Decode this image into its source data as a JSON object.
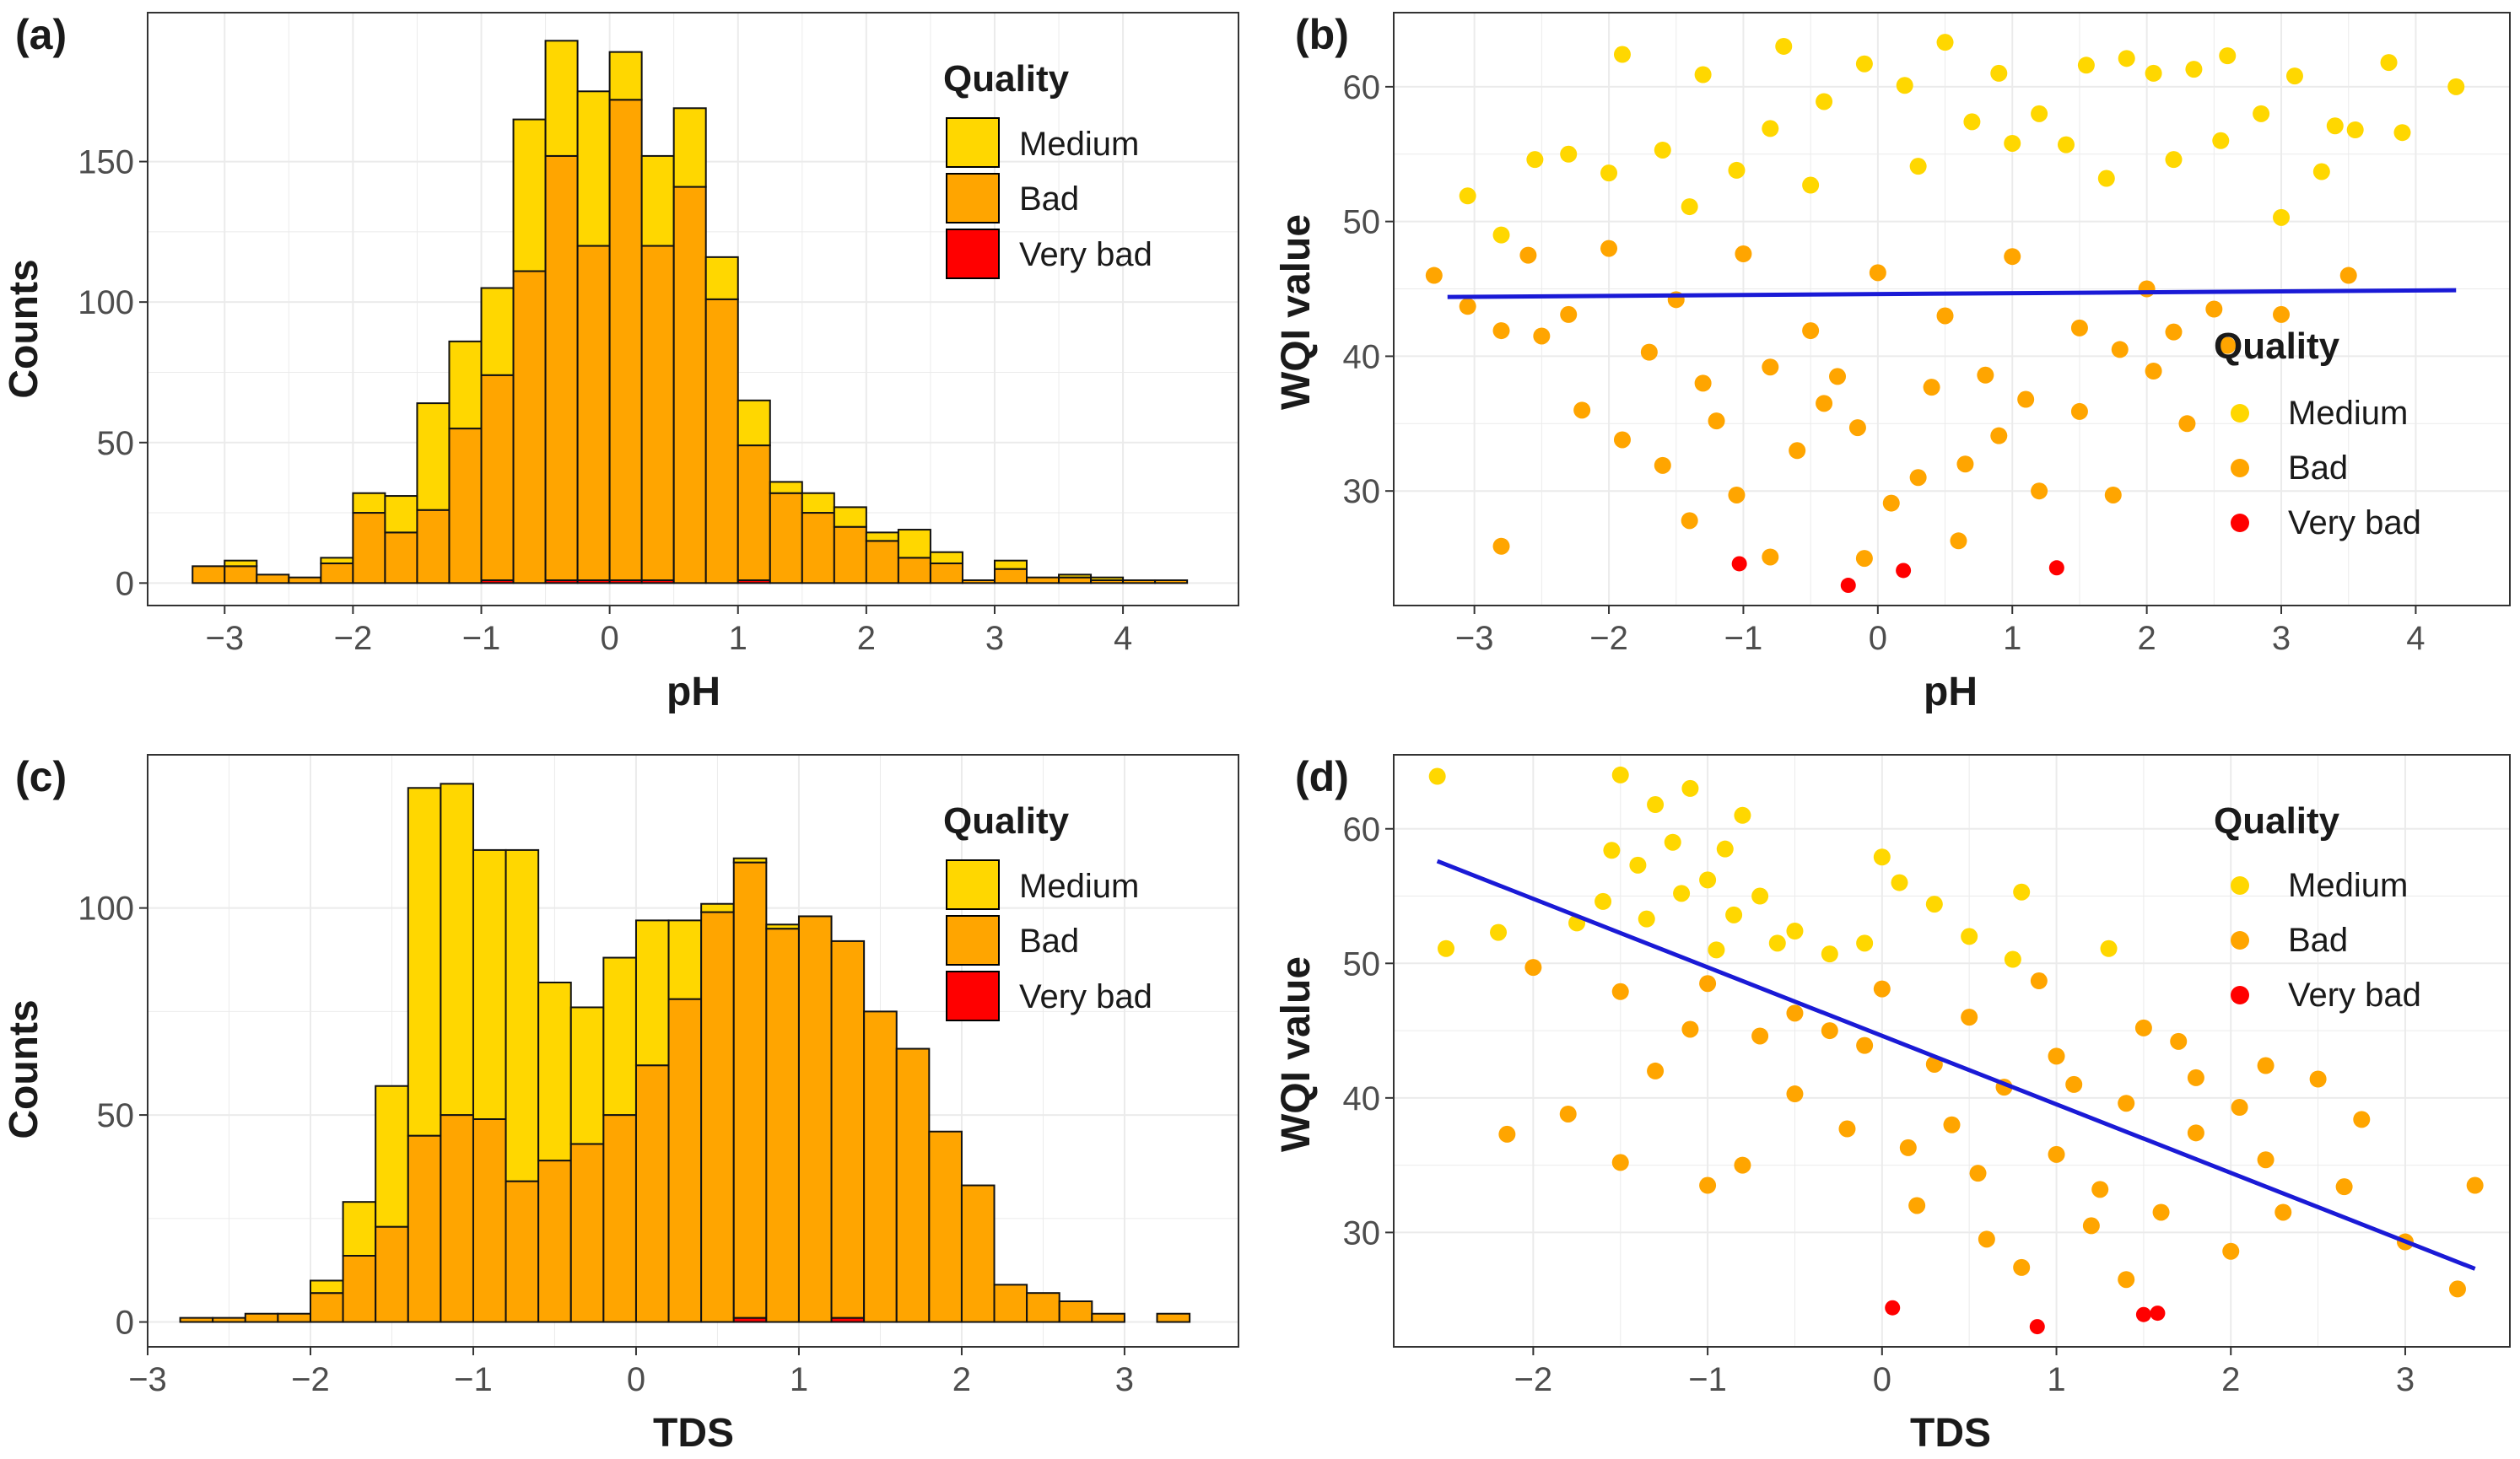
{
  "colors": {
    "medium": "#FFD700",
    "bad": "#FFA500",
    "very_bad": "#FF0000",
    "trend": "#1a1ad6",
    "grid": "#ebebeb",
    "frame": "#333333"
  },
  "chart_data": [
    {
      "id": "a",
      "panel_label": "(a)",
      "type": "bar",
      "subtype": "stacked-histogram",
      "xlabel": "pH",
      "ylabel": "Counts",
      "xlim": [
        -3.6,
        4.9
      ],
      "ylim": [
        -8,
        203
      ],
      "xticks": [
        -3,
        -2,
        -1,
        0,
        1,
        2,
        3,
        4
      ],
      "yticks": [
        0,
        50,
        100,
        150
      ],
      "bin_width": 0.25,
      "bin_starts": [
        -3.25,
        -3.0,
        -2.75,
        -2.5,
        -2.25,
        -2.0,
        -1.75,
        -1.5,
        -1.25,
        -1.0,
        -0.75,
        -0.5,
        -0.25,
        0.0,
        0.25,
        0.5,
        0.75,
        1.0,
        1.25,
        1.5,
        1.75,
        2.0,
        2.25,
        2.5,
        2.75,
        3.0,
        3.25,
        3.5,
        3.75,
        4.0,
        4.25
      ],
      "series": [
        {
          "name": "Very bad",
          "color_key": "very_bad",
          "values": [
            0,
            0,
            0,
            0,
            0,
            0,
            0,
            0,
            0,
            1,
            0,
            1,
            1,
            1,
            1,
            0,
            0,
            1,
            0,
            0,
            0,
            0,
            0,
            0,
            0,
            0,
            0,
            0,
            0,
            0,
            0
          ]
        },
        {
          "name": "Bad",
          "color_key": "bad",
          "values": [
            6,
            6,
            3,
            2,
            7,
            25,
            18,
            26,
            55,
            73,
            111,
            151,
            119,
            171,
            119,
            141,
            101,
            48,
            32,
            25,
            20,
            15,
            9,
            7,
            1,
            5,
            2,
            2,
            1,
            1,
            1
          ]
        },
        {
          "name": "Medium",
          "color_key": "medium",
          "values": [
            0,
            2,
            0,
            0,
            2,
            7,
            13,
            38,
            31,
            31,
            54,
            41,
            55,
            17,
            32,
            28,
            15,
            16,
            4,
            7,
            7,
            3,
            10,
            4,
            0,
            3,
            0,
            1,
            1,
            0,
            0
          ]
        }
      ],
      "legend": {
        "title": "Quality",
        "entries": [
          "Medium",
          "Bad",
          "Very bad"
        ],
        "position": "top-right"
      }
    },
    {
      "id": "b",
      "panel_label": "(b)",
      "type": "scatter",
      "xlabel": "pH",
      "ylabel": "WQI value",
      "xlim": [
        -3.6,
        4.7
      ],
      "ylim": [
        21.5,
        65.5
      ],
      "xticks": [
        -3,
        -2,
        -1,
        0,
        1,
        2,
        3,
        4
      ],
      "yticks": [
        30,
        40,
        50,
        60
      ],
      "trend": {
        "x": [
          -3.2,
          4.3
        ],
        "y": [
          44.4,
          44.9
        ]
      },
      "points": {
        "Very bad": [
          [
            -1.03,
            24.6
          ],
          [
            -0.22,
            23.0
          ],
          [
            0.19,
            24.1
          ],
          [
            1.33,
            24.3
          ]
        ],
        "Medium": [
          [
            -3.05,
            51.9
          ],
          [
            -2.8,
            49.0
          ],
          [
            -2.55,
            54.6
          ],
          [
            -1.9,
            62.4
          ],
          [
            -2.0,
            53.6
          ],
          [
            -1.6,
            55.3
          ],
          [
            -1.3,
            60.9
          ],
          [
            -1.05,
            53.8
          ],
          [
            -0.7,
            63.0
          ],
          [
            -0.4,
            58.9
          ],
          [
            -0.1,
            61.7
          ],
          [
            0.2,
            60.1
          ],
          [
            0.5,
            63.3
          ],
          [
            0.9,
            61.0
          ],
          [
            1.2,
            58.0
          ],
          [
            1.55,
            61.6
          ],
          [
            1.85,
            62.1
          ],
          [
            2.05,
            61.0
          ],
          [
            2.2,
            54.6
          ],
          [
            2.6,
            62.3
          ],
          [
            2.85,
            58.0
          ],
          [
            3.1,
            60.8
          ],
          [
            3.3,
            53.7
          ],
          [
            3.4,
            57.1
          ],
          [
            3.55,
            56.8
          ],
          [
            3.8,
            61.8
          ],
          [
            4.3,
            60.0
          ],
          [
            3.0,
            50.3
          ],
          [
            1.0,
            55.8
          ],
          [
            -0.5,
            52.7
          ],
          [
            0.3,
            54.1
          ],
          [
            -1.4,
            51.1
          ],
          [
            1.7,
            53.2
          ],
          [
            2.55,
            56.0
          ],
          [
            3.9,
            56.6
          ],
          [
            0.7,
            57.4
          ],
          [
            -0.8,
            56.9
          ],
          [
            2.35,
            61.3
          ],
          [
            -2.3,
            55.0
          ],
          [
            1.4,
            55.7
          ]
        ],
        "Bad": [
          [
            -3.3,
            46.0
          ],
          [
            -3.05,
            43.7
          ],
          [
            -2.8,
            41.9
          ],
          [
            -2.8,
            25.9
          ],
          [
            -2.6,
            47.5
          ],
          [
            -2.3,
            43.1
          ],
          [
            -2.2,
            36.0
          ],
          [
            -1.9,
            33.8
          ],
          [
            -1.6,
            31.9
          ],
          [
            -1.4,
            27.8
          ],
          [
            -1.2,
            35.2
          ],
          [
            -1.05,
            29.7
          ],
          [
            -0.8,
            25.1
          ],
          [
            -0.6,
            33.0
          ],
          [
            -0.4,
            36.5
          ],
          [
            -0.1,
            25.0
          ],
          [
            0.1,
            29.1
          ],
          [
            0.3,
            31.0
          ],
          [
            0.6,
            26.3
          ],
          [
            0.9,
            34.1
          ],
          [
            1.2,
            30.0
          ],
          [
            1.5,
            35.9
          ],
          [
            1.75,
            29.7
          ],
          [
            2.05,
            38.9
          ],
          [
            2.3,
            35.0
          ],
          [
            2.6,
            40.8
          ],
          [
            3.0,
            43.1
          ],
          [
            3.5,
            46.0
          ],
          [
            -2.0,
            48.0
          ],
          [
            -1.5,
            44.2
          ],
          [
            -1.0,
            47.6
          ],
          [
            -0.5,
            41.9
          ],
          [
            0.0,
            46.2
          ],
          [
            0.5,
            43.0
          ],
          [
            1.0,
            47.4
          ],
          [
            1.5,
            42.1
          ],
          [
            2.0,
            45.0
          ],
          [
            2.5,
            43.5
          ],
          [
            -2.5,
            41.5
          ],
          [
            -1.7,
            40.3
          ],
          [
            1.8,
            40.5
          ],
          [
            -0.3,
            38.5
          ],
          [
            0.4,
            37.7
          ],
          [
            0.8,
            38.6
          ],
          [
            -0.8,
            39.2
          ],
          [
            1.1,
            36.8
          ],
          [
            -1.3,
            38.0
          ],
          [
            2.2,
            41.8
          ],
          [
            -0.15,
            34.7
          ],
          [
            0.65,
            32.0
          ]
        ]
      },
      "legend": {
        "title": "Quality",
        "entries": [
          "Medium",
          "Bad",
          "Very bad"
        ],
        "position": "right"
      }
    },
    {
      "id": "c",
      "panel_label": "(c)",
      "type": "bar",
      "subtype": "stacked-histogram",
      "xlabel": "TDS",
      "ylabel": "Counts",
      "xlim": [
        -3.0,
        3.7
      ],
      "ylim": [
        -6,
        137
      ],
      "xticks": [
        -3,
        -2,
        -1,
        0,
        1,
        2,
        3
      ],
      "yticks": [
        0,
        50,
        100
      ],
      "bin_width": 0.2,
      "bin_starts": [
        -2.8,
        -2.6,
        -2.4,
        -2.2,
        -2.0,
        -1.8,
        -1.6,
        -1.4,
        -1.2,
        -1.0,
        -0.8,
        -0.6,
        -0.4,
        -0.2,
        0.0,
        0.2,
        0.4,
        0.6,
        0.8,
        1.0,
        1.2,
        1.4,
        1.6,
        1.8,
        2.0,
        2.2,
        2.4,
        2.6,
        2.8,
        3.0,
        3.2
      ],
      "series": [
        {
          "name": "Very bad",
          "color_key": "very_bad",
          "values": [
            0,
            0,
            0,
            0,
            0,
            0,
            0,
            0,
            0,
            0,
            0,
            0,
            0,
            0,
            0,
            0,
            0,
            1,
            0,
            0,
            1,
            0,
            0,
            0,
            0,
            0,
            0,
            0,
            0,
            0,
            0
          ]
        },
        {
          "name": "Bad",
          "color_key": "bad",
          "values": [
            1,
            1,
            2,
            2,
            7,
            16,
            23,
            45,
            50,
            49,
            34,
            39,
            43,
            50,
            62,
            78,
            99,
            110,
            95,
            98,
            91,
            75,
            66,
            46,
            33,
            9,
            7,
            5,
            2,
            0,
            2
          ]
        },
        {
          "name": "Medium",
          "color_key": "medium",
          "values": [
            0,
            0,
            0,
            0,
            3,
            13,
            34,
            84,
            80,
            65,
            80,
            43,
            33,
            38,
            35,
            19,
            2,
            1,
            1,
            0,
            0,
            0,
            0,
            0,
            0,
            0,
            0,
            0,
            0,
            0,
            0
          ]
        }
      ],
      "legend": {
        "title": "Quality",
        "entries": [
          "Medium",
          "Bad",
          "Very bad"
        ],
        "position": "top-right"
      }
    },
    {
      "id": "d",
      "panel_label": "(d)",
      "type": "scatter",
      "xlabel": "TDS",
      "ylabel": "WQI value",
      "xlim": [
        -2.8,
        3.6
      ],
      "ylim": [
        21.5,
        65.5
      ],
      "xticks": [
        -2,
        -1,
        0,
        1,
        2,
        3
      ],
      "yticks": [
        30,
        40,
        50,
        60
      ],
      "trend": {
        "x": [
          -2.55,
          3.4
        ],
        "y": [
          57.6,
          27.3
        ]
      },
      "points": {
        "Very bad": [
          [
            0.06,
            24.4
          ],
          [
            0.89,
            23.0
          ],
          [
            1.5,
            23.9
          ],
          [
            1.58,
            24.0
          ]
        ],
        "Medium": [
          [
            -2.55,
            63.9
          ],
          [
            -2.5,
            51.1
          ],
          [
            -2.2,
            52.3
          ],
          [
            -1.75,
            53.0
          ],
          [
            -1.5,
            64.0
          ],
          [
            -1.3,
            61.8
          ],
          [
            -1.1,
            63.0
          ],
          [
            -0.9,
            58.5
          ],
          [
            -1.0,
            56.2
          ],
          [
            -0.7,
            55.0
          ],
          [
            -1.2,
            59.0
          ],
          [
            -1.4,
            57.3
          ],
          [
            -0.5,
            52.4
          ],
          [
            -0.1,
            51.5
          ],
          [
            0.0,
            57.9
          ],
          [
            0.3,
            54.4
          ],
          [
            0.1,
            56.0
          ],
          [
            0.5,
            52.0
          ],
          [
            0.75,
            50.3
          ],
          [
            0.8,
            55.3
          ],
          [
            1.3,
            51.1
          ],
          [
            -1.6,
            54.6
          ],
          [
            -0.8,
            61.0
          ],
          [
            -1.35,
            53.3
          ],
          [
            -0.95,
            51.0
          ],
          [
            -0.6,
            51.5
          ],
          [
            -1.15,
            55.2
          ],
          [
            -1.55,
            58.4
          ],
          [
            -0.85,
            53.6
          ],
          [
            -0.3,
            50.7
          ]
        ],
        "Bad": [
          [
            -2.15,
            37.3
          ],
          [
            -1.8,
            38.8
          ],
          [
            -2.0,
            49.7
          ],
          [
            -1.5,
            35.2
          ],
          [
            -1.3,
            42.0
          ],
          [
            -1.0,
            33.5
          ],
          [
            -0.8,
            35.0
          ],
          [
            -0.5,
            40.3
          ],
          [
            -0.2,
            37.7
          ],
          [
            -0.1,
            43.9
          ],
          [
            0.2,
            32.0
          ],
          [
            0.4,
            38.0
          ],
          [
            0.6,
            29.5
          ],
          [
            0.8,
            27.4
          ],
          [
            1.0,
            35.8
          ],
          [
            1.2,
            30.5
          ],
          [
            1.4,
            26.5
          ],
          [
            1.6,
            31.5
          ],
          [
            1.8,
            37.4
          ],
          [
            2.0,
            28.6
          ],
          [
            2.2,
            35.4
          ],
          [
            2.3,
            31.5
          ],
          [
            2.5,
            41.4
          ],
          [
            2.65,
            33.4
          ],
          [
            2.75,
            38.4
          ],
          [
            3.0,
            29.3
          ],
          [
            3.3,
            25.8
          ],
          [
            3.4,
            33.5
          ],
          [
            0.5,
            46.0
          ],
          [
            1.0,
            43.1
          ],
          [
            1.5,
            45.2
          ],
          [
            0.0,
            48.1
          ],
          [
            -0.5,
            46.3
          ],
          [
            -1.0,
            48.5
          ],
          [
            1.8,
            41.5
          ],
          [
            1.4,
            39.6
          ],
          [
            0.3,
            42.5
          ],
          [
            -0.3,
            45.0
          ],
          [
            0.7,
            40.8
          ],
          [
            1.1,
            41.0
          ],
          [
            1.7,
            44.2
          ],
          [
            0.9,
            48.7
          ],
          [
            -0.7,
            44.6
          ],
          [
            2.2,
            42.4
          ],
          [
            2.05,
            39.3
          ],
          [
            -1.5,
            47.9
          ],
          [
            -1.1,
            45.1
          ],
          [
            0.15,
            36.3
          ],
          [
            0.55,
            34.4
          ],
          [
            1.25,
            33.2
          ]
        ]
      },
      "legend": {
        "title": "Quality",
        "entries": [
          "Medium",
          "Bad",
          "Very bad"
        ],
        "position": "top-right"
      }
    }
  ]
}
